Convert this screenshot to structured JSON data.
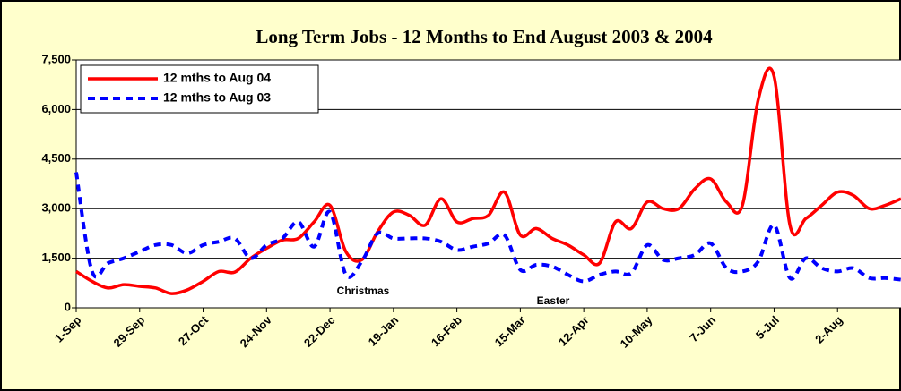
{
  "chart_data": {
    "type": "line",
    "title": "Long Term Jobs - 12 Months to End August 2003 & 2004",
    "categories": [
      "1-Sep",
      null,
      null,
      null,
      "29-Sep",
      null,
      null,
      null,
      "27-Oct",
      null,
      null,
      null,
      "24-Nov",
      null,
      null,
      null,
      "22-Dec",
      null,
      null,
      null,
      "19-Jan",
      null,
      null,
      null,
      "16-Feb",
      null,
      null,
      null,
      "15-Mar",
      null,
      null,
      null,
      "12-Apr",
      null,
      null,
      null,
      "10-May",
      null,
      null,
      null,
      "7-Jun",
      null,
      null,
      null,
      "5-Jul",
      null,
      null,
      null,
      "2-Aug",
      null,
      null,
      null,
      null
    ],
    "series": [
      {
        "name": "12 mths to Aug 04",
        "color": "#ff0000",
        "dashed": false,
        "values": [
          1100,
          800,
          600,
          700,
          650,
          600,
          430,
          540,
          800,
          1100,
          1080,
          1500,
          1800,
          2050,
          2100,
          2600,
          3100,
          1700,
          1450,
          2300,
          2900,
          2800,
          2500,
          3300,
          2600,
          2700,
          2800,
          3500,
          2200,
          2400,
          2100,
          1900,
          1600,
          1350,
          2600,
          2400,
          3200,
          3000,
          3000,
          3600,
          3900,
          3200,
          3100,
          6300,
          7000,
          2500,
          2700,
          3100,
          3500,
          3400,
          3000,
          3100,
          3300
        ]
      },
      {
        "name": "12 mths to Aug 03",
        "color": "#0000ff",
        "dashed": true,
        "values": [
          4100,
          1100,
          1350,
          1500,
          1700,
          1900,
          1900,
          1650,
          1900,
          2000,
          2100,
          1500,
          1900,
          2100,
          2600,
          1850,
          2900,
          1000,
          1400,
          2250,
          2100,
          2100,
          2100,
          2000,
          1750,
          1850,
          1950,
          2200,
          1150,
          1300,
          1250,
          1000,
          800,
          1000,
          1100,
          1050,
          1900,
          1450,
          1500,
          1600,
          1950,
          1200,
          1100,
          1400,
          2500,
          900,
          1500,
          1200,
          1100,
          1200,
          900,
          900,
          850
        ]
      }
    ],
    "annotations": [
      "Christmas",
      "Easter"
    ],
    "ylim": [
      0,
      7500
    ],
    "yticks": [
      0,
      {
        "value": 1500,
        "label": "1,500"
      },
      {
        "value": 3000,
        "label": "3,000"
      },
      {
        "value": 4500,
        "label": "4,500"
      },
      {
        "value": 6000,
        "label": "6,000"
      },
      {
        "value": 7500,
        "label": "7,500"
      }
    ],
    "grid": true,
    "legend": "top-left"
  }
}
